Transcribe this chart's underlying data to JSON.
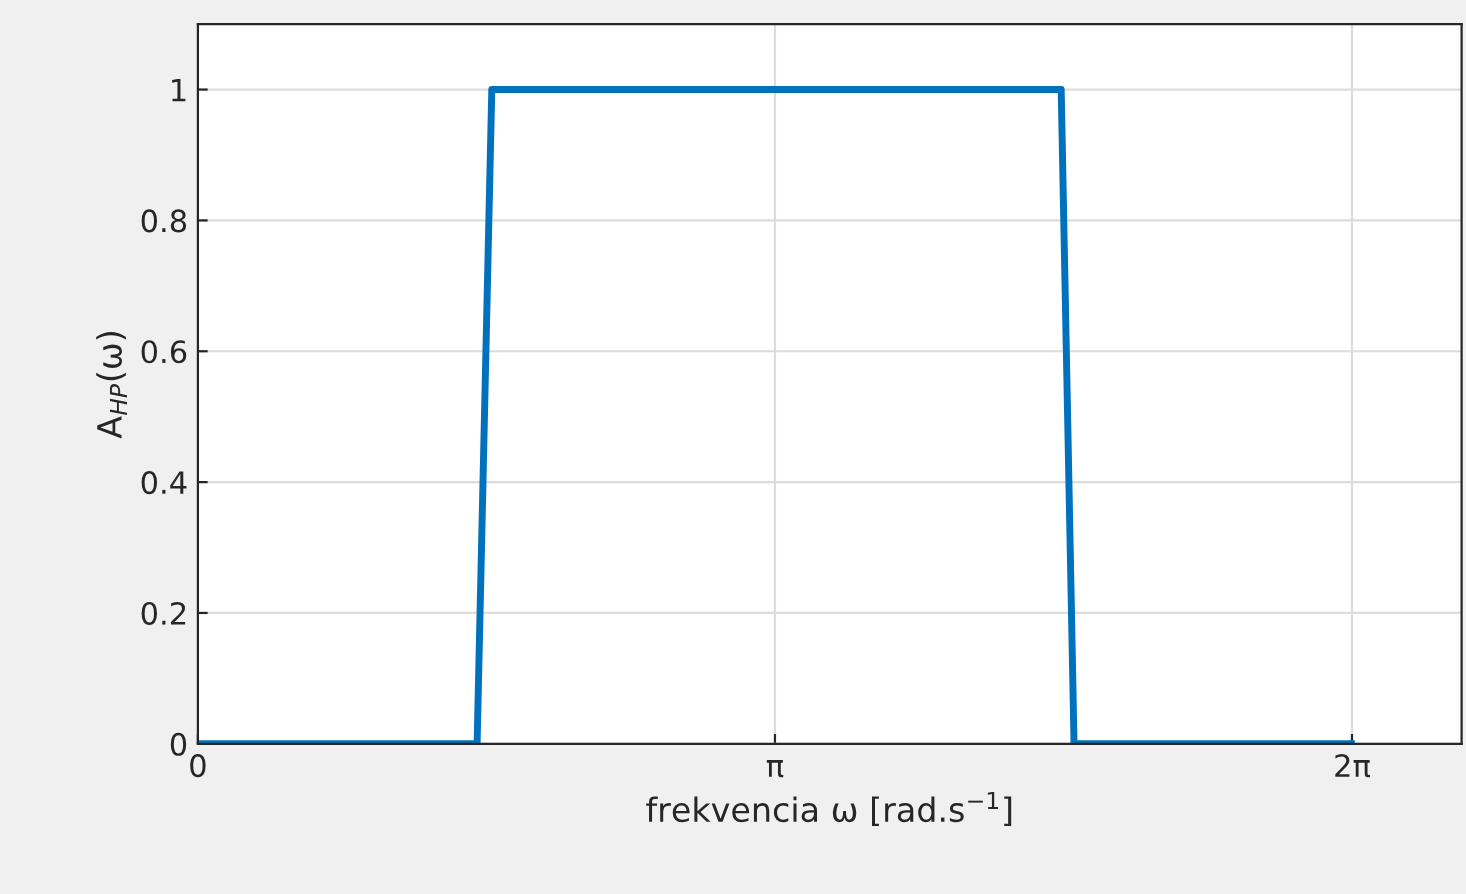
{
  "chart_data": {
    "type": "line",
    "xlabel": "frekvencia ω [rad.s$^{−1}$]",
    "ylabel": "A$_{HP}$(ω)",
    "x": [
      0,
      1.52,
      1.6,
      4.7,
      4.77,
      6.28
    ],
    "series": [
      {
        "color": "#0072bd",
        "values": [
          0,
          0,
          1,
          1,
          0,
          0
        ]
      }
    ],
    "xlim": [
      0,
      6.88
    ],
    "xticks": [
      0,
      {
        "value": 3.1416,
        "label": "π"
      },
      {
        "value": 6.2832,
        "label": "2π"
      }
    ],
    "ylim": [
      0,
      1.1
    ],
    "yticks": [
      0,
      0.2,
      0.4,
      0.6,
      0.8,
      1
    ],
    "grid": true,
    "marker": "none",
    "line_style": "solid"
  }
}
